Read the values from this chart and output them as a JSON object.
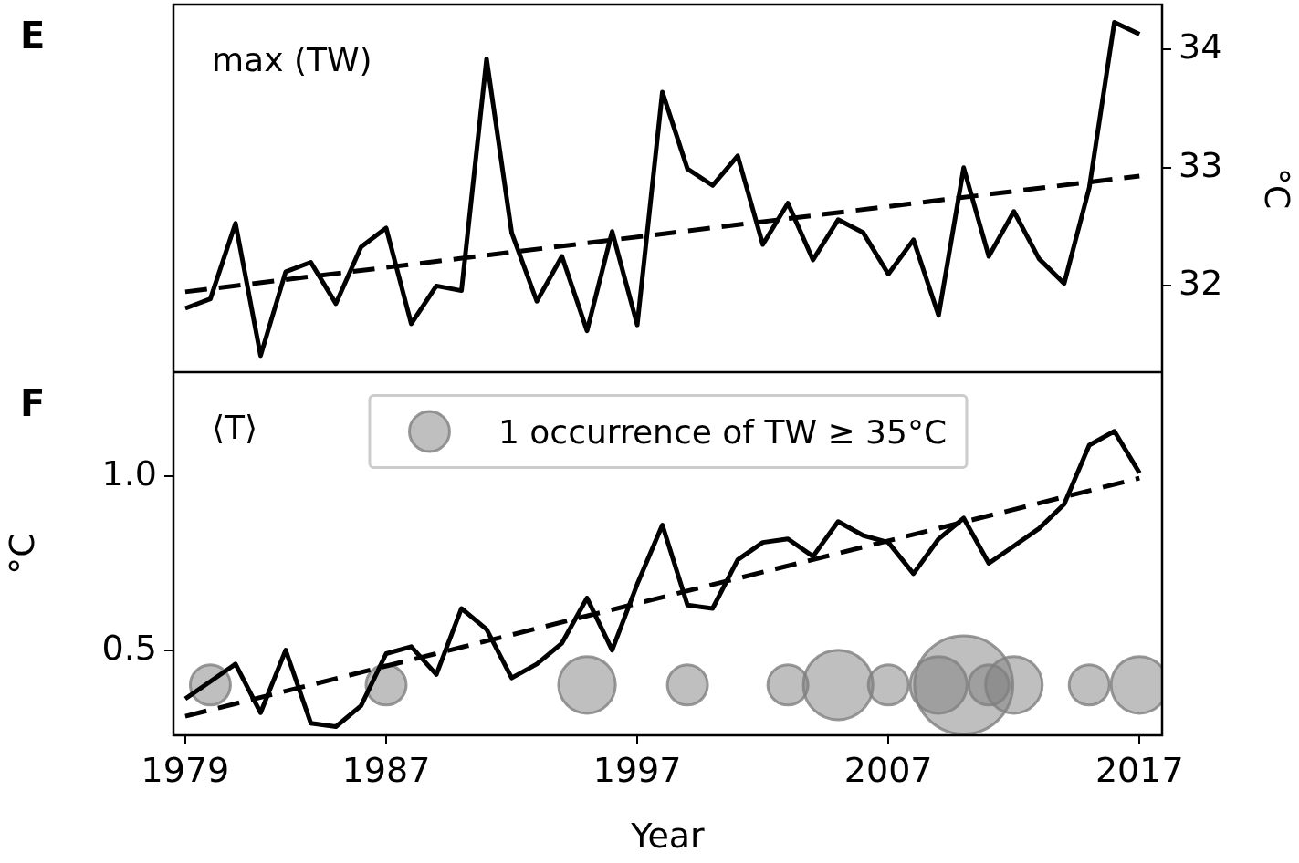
{
  "chart_data": [
    {
      "type": "line",
      "y2label": "°C",
      "annotations": [
        "E",
        "max (TW)"
      ],
      "x": [
        1979,
        1980,
        1981,
        1982,
        1983,
        1984,
        1985,
        1986,
        1987,
        1988,
        1989,
        1990,
        1991,
        1992,
        1993,
        1994,
        1995,
        1996,
        1997,
        1998,
        1999,
        2000,
        2001,
        2002,
        2003,
        2004,
        2005,
        2006,
        2007,
        2008,
        2009,
        2010,
        2011,
        2012,
        2013,
        2014,
        2015,
        2016,
        2017
      ],
      "xlim": [
        1978.53,
        2017.9
      ],
      "y2lim": [
        31.27,
        34.38
      ],
      "y2ticks": [
        32,
        33,
        34
      ],
      "tick_labels": "y2",
      "grid": false,
      "series": [
        {
          "color": "#000000",
          "axis": "y2",
          "line_style": "solid",
          "values": [
            31.81,
            31.89,
            32.53,
            31.41,
            32.12,
            32.2,
            31.85,
            32.33,
            32.49,
            31.68,
            32.0,
            31.96,
            33.92,
            32.45,
            31.87,
            32.25,
            31.62,
            32.46,
            31.67,
            33.64,
            32.99,
            32.85,
            33.1,
            32.35,
            32.7,
            32.22,
            32.56,
            32.45,
            32.1,
            32.39,
            31.75,
            33.0,
            32.25,
            32.63,
            32.23,
            32.02,
            32.83,
            34.23,
            34.13
          ]
        },
        {
          "type": "line",
          "color": "#000000",
          "axis": "y2",
          "line_style": "dashed",
          "x": [
            1979,
            2017
          ],
          "values": [
            31.95,
            32.93
          ]
        }
      ]
    },
    {
      "type": "line",
      "xlabel": "Year",
      "ylabel": "°C",
      "annotations": [
        "F",
        "⟨T⟩"
      ],
      "x": [
        1979,
        1980,
        1981,
        1982,
        1983,
        1984,
        1985,
        1986,
        1987,
        1988,
        1989,
        1990,
        1991,
        1992,
        1993,
        1994,
        1995,
        1996,
        1997,
        1998,
        1999,
        2000,
        2001,
        2002,
        2003,
        2004,
        2005,
        2006,
        2007,
        2008,
        2009,
        2010,
        2011,
        2012,
        2013,
        2014,
        2015,
        2016,
        2017
      ],
      "xlim": [
        1978.53,
        2017.9
      ],
      "xticks": [
        1979,
        1987,
        1997,
        2007,
        2017
      ],
      "ylim": [
        0.255,
        1.3
      ],
      "size_legend": [
        {
          "value": 1,
          "label": "1 occurrence of TW ≥ 35°C"
        }
      ],
      "yticks": [
        {
          "value": 0.5,
          "label": "0.5"
        },
        {
          "value": 1,
          "label": "1.0"
        }
      ],
      "grid": false,
      "series": [
        {
          "color": "#000000",
          "line_style": "solid",
          "values": [
            0.36,
            0.41,
            0.46,
            0.32,
            0.5,
            0.29,
            0.28,
            0.34,
            0.49,
            0.51,
            0.43,
            0.62,
            0.56,
            0.42,
            0.46,
            0.52,
            0.65,
            0.5,
            0.69,
            0.86,
            0.63,
            0.62,
            0.76,
            0.81,
            0.82,
            0.77,
            0.87,
            0.83,
            0.81,
            0.72,
            0.82,
            0.88,
            0.75,
            0.8,
            0.85,
            0.92,
            1.09,
            1.13,
            1.01
          ]
        },
        {
          "type": "line",
          "color": "#000000",
          "line_style": "dashed",
          "x": [
            1979,
            2017
          ],
          "values": [
            0.31,
            0.995
          ]
        },
        {
          "type": "bubble",
          "color": "#808080",
          "x": [
            1980,
            1987,
            1995,
            1999,
            2003,
            2005,
            2007,
            2009,
            2010,
            2011,
            2012,
            2015,
            2017
          ],
          "values": [
            0.4,
            0.4,
            0.4,
            0.4,
            0.4,
            0.4,
            0.4,
            0.4,
            0.4,
            0.4,
            0.4,
            0.4,
            0.4
          ],
          "sizes": [
            1,
            1,
            2,
            1,
            1,
            3,
            1,
            2,
            6,
            1,
            2,
            1,
            2
          ]
        }
      ]
    }
  ]
}
